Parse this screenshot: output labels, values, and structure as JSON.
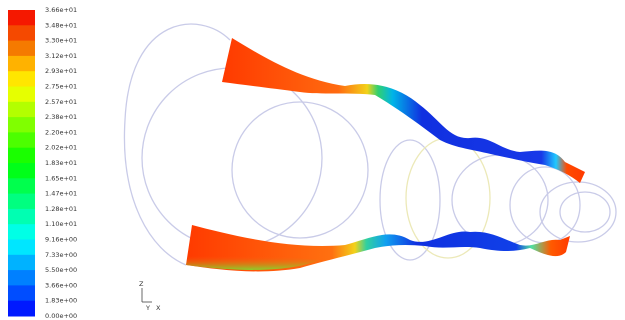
{
  "legend": {
    "labels": [
      "3.66e+01",
      "3.48e+01",
      "3.30e+01",
      "3.12e+01",
      "2.93e+01",
      "2.75e+01",
      "2.57e+01",
      "2.38e+01",
      "2.20e+01",
      "2.02e+01",
      "1.83e+01",
      "1.65e+01",
      "1.47e+01",
      "1.28e+01",
      "1.10e+01",
      "9.16e+00",
      "7.33e+00",
      "5.50e+00",
      "3.66e+00",
      "1.83e+00",
      "0.00e+00"
    ]
  },
  "axes": {
    "z": "Z",
    "y": "Y",
    "x": "X"
  }
}
